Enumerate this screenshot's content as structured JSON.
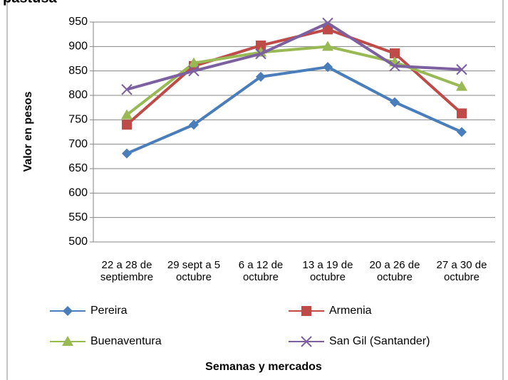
{
  "chart_data": {
    "type": "line",
    "title": "pastusa",
    "y_label": "Valor en pesos",
    "x_label": "Semanas y mercados",
    "categories": [
      "22 a 28 de\nseptiembre",
      "29 sept a 5\noctubre",
      "6 a 12 de\noctubre",
      "13 a 19 de\noctubre",
      "20 a 26 de\noctubre",
      "27 a 30 de\noctubre"
    ],
    "series": [
      {
        "name": "Pereira",
        "color": "#4a7ebb",
        "marker": "diamond",
        "values": [
          681,
          740,
          838,
          858,
          786,
          725
        ]
      },
      {
        "name": "Armenia",
        "color": "#be4b48",
        "marker": "square",
        "values": [
          740,
          860,
          902,
          935,
          886,
          763
        ]
      },
      {
        "name": "Buenaventura",
        "color": "#98b954",
        "marker": "triangle",
        "values": [
          760,
          866,
          888,
          900,
          868,
          818
        ]
      },
      {
        "name": "San Gil (Santander)",
        "color": "#7d60a0",
        "marker": "x",
        "values": [
          812,
          850,
          885,
          948,
          860,
          853
        ]
      }
    ],
    "ylim": [
      500,
      950
    ],
    "yticks": [
      500,
      550,
      600,
      650,
      700,
      750,
      800,
      850,
      900,
      950
    ],
    "grid": true,
    "legend": "bottom"
  }
}
